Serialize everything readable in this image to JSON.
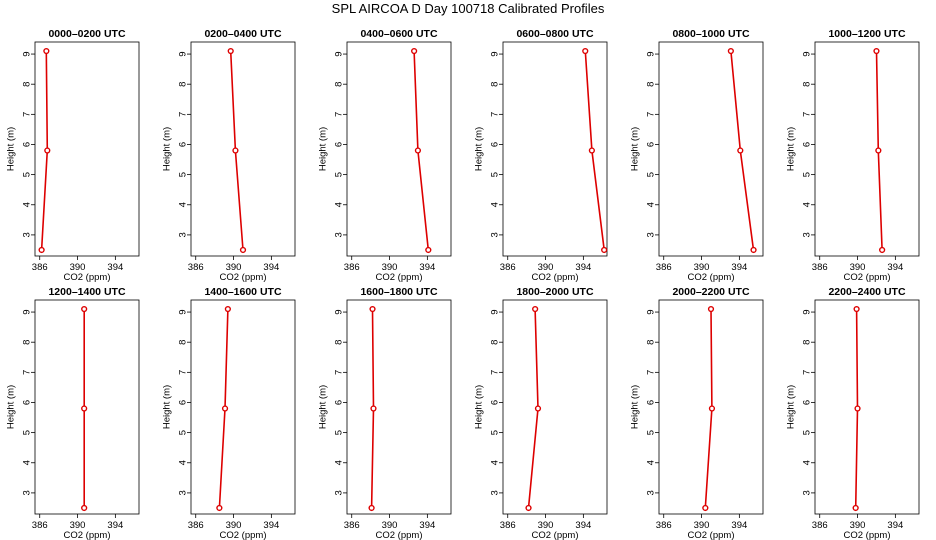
{
  "title": "SPL AIRCOA D  Day 100718  Calibrated Profiles",
  "colors": {
    "series": "#dd0000",
    "frame": "#000000",
    "background": "#ffffff"
  },
  "chart_data": {
    "type": "line",
    "layout": "grid 2x6 small multiples",
    "xlabel": "CO2 (ppm)",
    "ylabel": "Height (m)",
    "xlim": [
      385.5,
      396.5
    ],
    "ylim": [
      2.3,
      9.4
    ],
    "xticks": [
      386,
      390,
      394
    ],
    "yticks": [
      3,
      4,
      5,
      6,
      7,
      8,
      9
    ],
    "grid": false,
    "heights": [
      2.5,
      5.8,
      9.1
    ],
    "panels": [
      {
        "title": "0000–0200 UTC",
        "co2": [
          386.2,
          386.8,
          386.7
        ]
      },
      {
        "title": "0200–0400 UTC",
        "co2": [
          391.0,
          390.2,
          389.7
        ]
      },
      {
        "title": "0400–0600 UTC",
        "co2": [
          394.1,
          393.0,
          392.6
        ]
      },
      {
        "title": "0600–0800 UTC",
        "co2": [
          396.2,
          394.9,
          394.2
        ]
      },
      {
        "title": "0800–1000 UTC",
        "co2": [
          395.5,
          394.1,
          393.1
        ]
      },
      {
        "title": "1000–1200 UTC",
        "co2": [
          392.6,
          392.2,
          392.0
        ]
      },
      {
        "title": "1200–1400 UTC",
        "co2": [
          390.7,
          390.7,
          390.7
        ]
      },
      {
        "title": "1400–1600 UTC",
        "co2": [
          388.5,
          389.1,
          389.4
        ]
      },
      {
        "title": "1600–1800 UTC",
        "co2": [
          388.1,
          388.3,
          388.2
        ]
      },
      {
        "title": "1800–2000 UTC",
        "co2": [
          388.2,
          389.2,
          388.9
        ]
      },
      {
        "title": "2000–2200 UTC",
        "co2": [
          390.4,
          391.1,
          391.0
        ]
      },
      {
        "title": "2200–2400 UTC",
        "co2": [
          389.8,
          390.0,
          389.9
        ]
      }
    ]
  }
}
